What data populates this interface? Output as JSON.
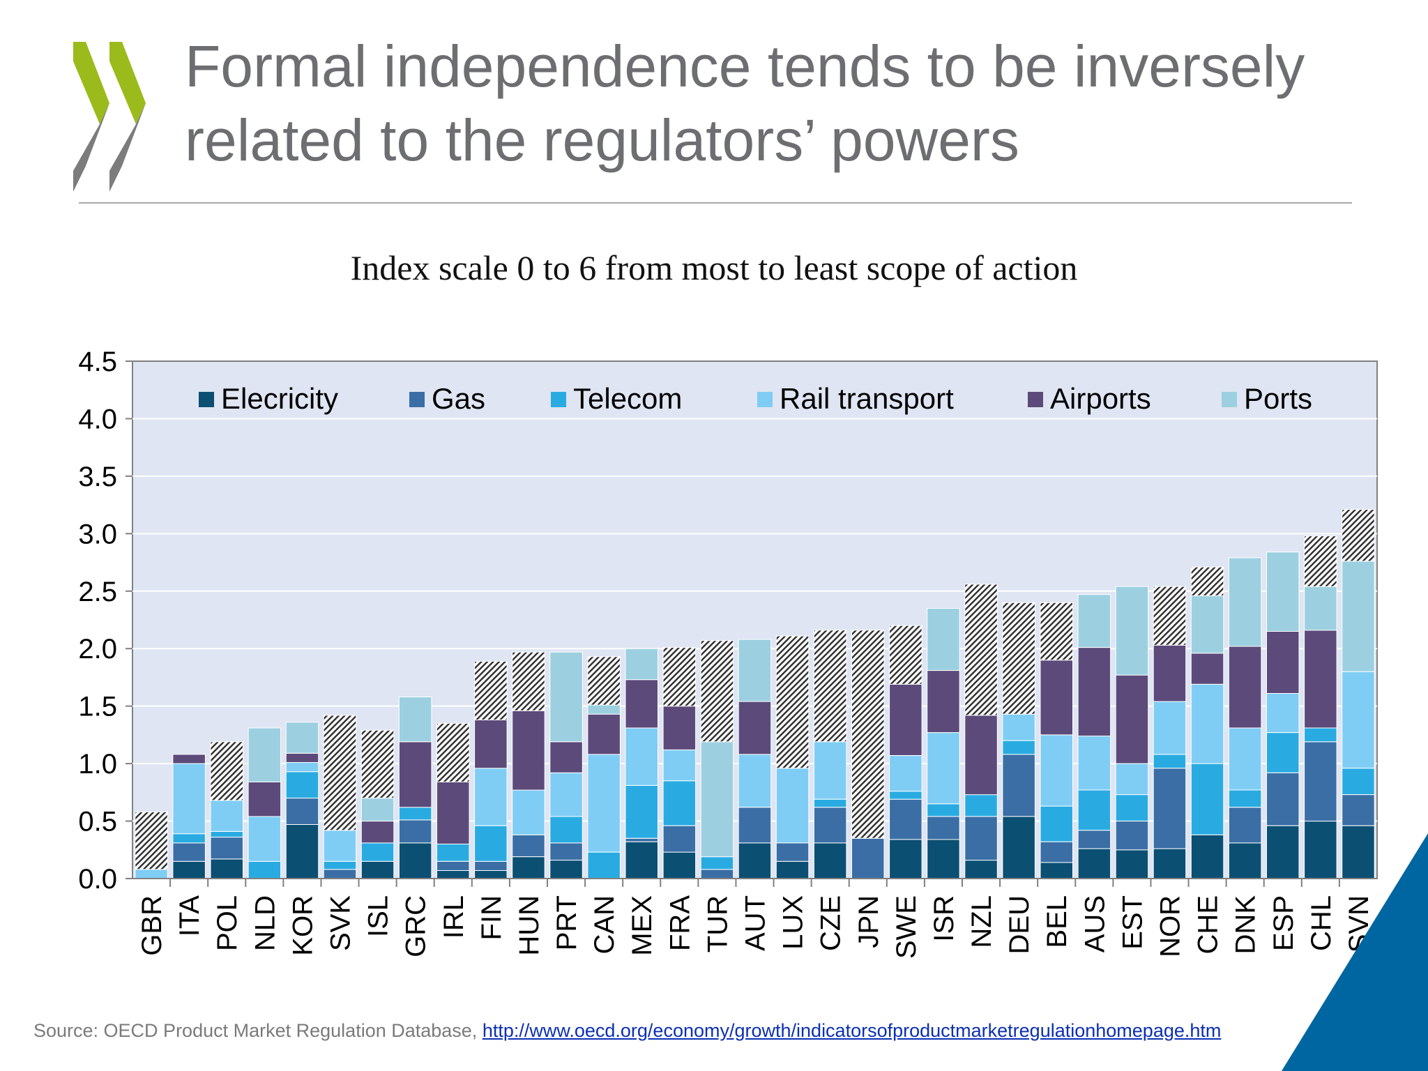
{
  "title": "Formal independence tends to be inversely related to the regulators’ powers",
  "subtitle": "Index scale 0 to 6 from most to least scope of action",
  "source": {
    "prefix": "Source: OECD Product Market Regulation Database, ",
    "link": "http://www.oecd.org/economy/growth/indicatorsofproductmarketregulationhomepage.htm"
  },
  "colors": {
    "Elecricity": "#0b4f73",
    "Gas": "#3a6ea5",
    "Telecom": "#29abe2",
    "Rail transport": "#7fcdf5",
    "Airports": "#5c4a7a",
    "Ports": "#9cd0e0",
    "Independence": "hatched",
    "logo_green": "#9bbb1c",
    "logo_gray": "#7c7c7c",
    "corner": "#0066a1",
    "plot_bg": "#dfe5f2"
  },
  "chart_data": {
    "type": "bar",
    "stacked": true,
    "title": "Index scale 0 to 6 from most to least scope of action",
    "xlabel": "",
    "ylabel": "",
    "ylim": [
      0,
      4.5
    ],
    "yticks": [
      "0.0",
      "0.5",
      "1.0",
      "1.5",
      "2.0",
      "2.5",
      "3.0",
      "3.5",
      "4.0",
      "4.5"
    ],
    "legend_position": "top",
    "legend": [
      "Elecricity",
      "Gas",
      "Telecom",
      "Rail transport",
      "Airports",
      "Ports"
    ],
    "categories": [
      "GBR",
      "ITA",
      "POL",
      "NLD",
      "KOR",
      "SVK",
      "ISL",
      "GRC",
      "IRL",
      "FIN",
      "HUN",
      "PRT",
      "CAN",
      "MEX",
      "FRA",
      "TUR",
      "AUT",
      "LUX",
      "CZE",
      "JPN",
      "SWE",
      "ISR",
      "NZL",
      "DEU",
      "BEL",
      "AUS",
      "EST",
      "NOR",
      "CHE",
      "DNK",
      "ESP",
      "CHL",
      "SVN"
    ],
    "series": [
      {
        "name": "Elecricity",
        "values": [
          0,
          0.15,
          0.17,
          0,
          0.47,
          0,
          0.15,
          0.31,
          0.07,
          0.07,
          0.19,
          0.16,
          0,
          0.32,
          0.23,
          0,
          0.31,
          0.15,
          0.31,
          0,
          0.34,
          0.34,
          0.16,
          0.54,
          0.14,
          0.26,
          0.25,
          0.26,
          0.38,
          0.31,
          0.46,
          0.5,
          0.46
        ]
      },
      {
        "name": "Gas",
        "values": [
          0,
          0.16,
          0.19,
          0,
          0.23,
          0.08,
          0,
          0.2,
          0.08,
          0.08,
          0.19,
          0.15,
          0,
          0.03,
          0.23,
          0.08,
          0.31,
          0.16,
          0.31,
          0.35,
          0.35,
          0.2,
          0.38,
          0.54,
          0.18,
          0.16,
          0.25,
          0.7,
          0,
          0.31,
          0.46,
          0.69,
          0.27
        ]
      },
      {
        "name": "Telecom",
        "values": [
          0,
          0.08,
          0.05,
          0.15,
          0.23,
          0.07,
          0.16,
          0.11,
          0.15,
          0.31,
          0,
          0.23,
          0.23,
          0.46,
          0.39,
          0.11,
          0,
          0,
          0.07,
          0,
          0.07,
          0.11,
          0.19,
          0.12,
          0.31,
          0.35,
          0.23,
          0.12,
          0.62,
          0.15,
          0.35,
          0.12,
          0.23
        ]
      },
      {
        "name": "Rail transport",
        "values": [
          0.08,
          0.61,
          0.27,
          0.39,
          0.08,
          0.27,
          0,
          0,
          0,
          0.5,
          0.39,
          0.38,
          0.85,
          0.5,
          0.27,
          0,
          0.46,
          0.65,
          0.5,
          0,
          0.31,
          0.62,
          0,
          0.23,
          0.62,
          0.47,
          0.27,
          0.46,
          0.69,
          0.54,
          0.34,
          0,
          0.84
        ]
      },
      {
        "name": "Airports",
        "values": [
          0,
          0.08,
          0,
          0.3,
          0.08,
          0,
          0.19,
          0.57,
          0.54,
          0.42,
          0.69,
          0.27,
          0.35,
          0.42,
          0.38,
          0,
          0.46,
          0,
          0,
          0,
          0.62,
          0.54,
          0.69,
          0,
          0.65,
          0.77,
          0.77,
          0.49,
          0.27,
          0.71,
          0.54,
          0.85,
          0
        ]
      },
      {
        "name": "Ports",
        "values": [
          0,
          0,
          0,
          0.47,
          0.27,
          0,
          0.2,
          0.39,
          0,
          0,
          0,
          0.78,
          0.08,
          0.27,
          0,
          1,
          0.54,
          0,
          0,
          0,
          0,
          0.54,
          0,
          0,
          0,
          0.46,
          0.77,
          0,
          0.5,
          0.77,
          0.69,
          0.38,
          0.96
        ]
      },
      {
        "name": "Independence",
        "values": [
          0.5,
          0,
          0.51,
          0,
          0,
          1.0,
          0.59,
          0,
          0.51,
          0.51,
          0.51,
          0,
          0.42,
          0,
          0.51,
          0.88,
          0,
          1.15,
          0.97,
          1.81,
          0.51,
          0,
          1.14,
          0.97,
          0.5,
          0,
          0,
          0.51,
          0.25,
          0,
          0,
          0.44,
          0.45
        ]
      }
    ]
  }
}
